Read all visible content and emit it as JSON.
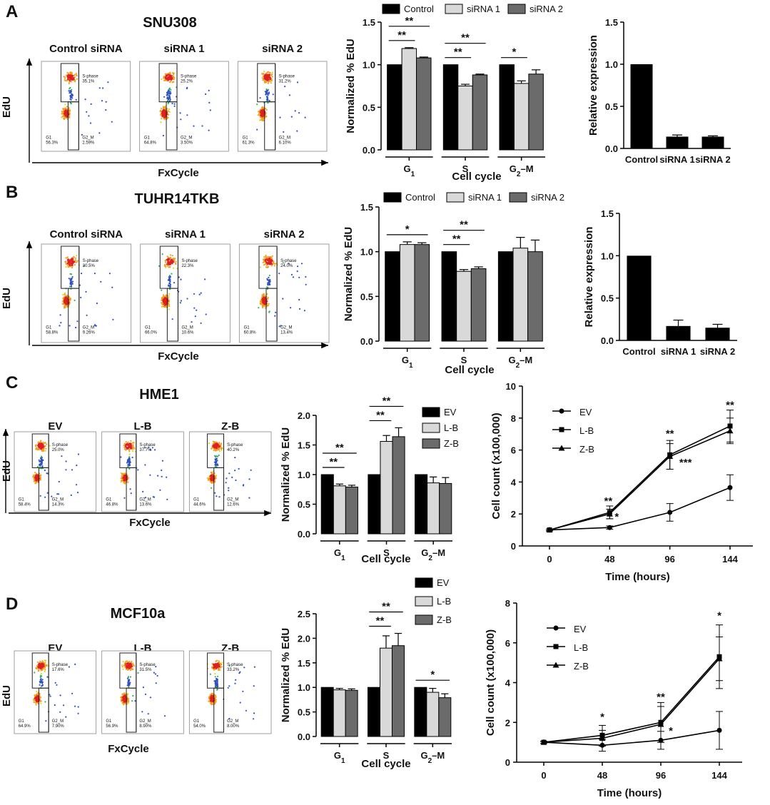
{
  "colors": {
    "control": "#000000",
    "treat1": "#d9d9d9",
    "treat2": "#6b6b6b",
    "axis": "#000000"
  },
  "panels": [
    {
      "letter": "A",
      "cell_line": "SNU308",
      "flow": {
        "plots": [
          "Control siRNA",
          "siRNA 1",
          "siRNA 2"
        ],
        "x_axis": "FxCycle",
        "y_axis": "EdU",
        "gates": [
          {
            "top": "S-phase\n35.1%",
            "g1": "G1\n56.3%",
            "g2m": "G2_M\n2.59%"
          },
          {
            "top": "S-phase\n25.2%",
            "g1": "G1\n64.8%",
            "g2m": "G2_M\n3.50%"
          },
          {
            "top": "S-phase\n31.2%",
            "g1": "G1\n61.3%",
            "g2m": "G2_M\n6.10%"
          }
        ]
      }
    },
    {
      "letter": "B",
      "cell_line": "TUHR14TKB",
      "flow": {
        "plots": [
          "Control siRNA",
          "siRNA 1",
          "siRNA 2"
        ],
        "x_axis": "FxCycle",
        "y_axis": "EdU",
        "gates": [
          {
            "top": "S-phase\n30.5%",
            "g1": "G1\n58.8%",
            "g2m": "G2_M\n9.26%"
          },
          {
            "top": "S-phase\n22.3%",
            "g1": "G1\n66.0%",
            "g2m": "G2_M\n10.6%"
          },
          {
            "top": "S-phase\n24.0%",
            "g1": "G1\n60.8%",
            "g2m": "G2_M\n13.4%"
          }
        ]
      }
    },
    {
      "letter": "C",
      "cell_line": "HME1",
      "flow": {
        "plots": [
          "EV",
          "L-B",
          "Z-B"
        ],
        "x_axis": "FxCycle",
        "y_axis": "EdU",
        "gates": [
          {
            "top": "S-phase\n25.0%",
            "g1": "G1\n58.4%",
            "g2m": "G2_M\n14.3%"
          },
          {
            "top": "S-phase\n37.7%",
            "g1": "G1\n46.8%",
            "g2m": "G2_M\n13.6%"
          },
          {
            "top": "S-phase\n40.2%",
            "g1": "G1\n44.6%",
            "g2m": "G2_M\n12.6%"
          }
        ]
      }
    },
    {
      "letter": "D",
      "cell_line": "MCF10a",
      "flow": {
        "plots": [
          "EV",
          "L-B",
          "Z-B"
        ],
        "x_axis": "FxCycle",
        "y_axis": "EdU",
        "gates": [
          {
            "top": "S-phase\n17.6%",
            "g1": "G1\n64.9%",
            "g2m": "G2_M\n7.90%"
          },
          {
            "top": "S-phase\n31.5%",
            "g1": "G1\n56.9%",
            "g2m": "G2_M\n8.90%"
          },
          {
            "top": "S-phase\n33.2%",
            "g1": "G1\n54.0%",
            "g2m": "G2_M\n8.00%"
          }
        ]
      }
    }
  ],
  "chart_data": [
    {
      "id": "A-edu",
      "type": "bar",
      "xlabel": "Cell cycle",
      "ylabel": "Normalized % EdU",
      "ylim": [
        0,
        1.5
      ],
      "yticks": [
        "0.0",
        "0.5",
        "1.0",
        "1.5"
      ],
      "categories": [
        "G1",
        "S",
        "G2–M"
      ],
      "series": [
        {
          "name": "Control",
          "values": [
            1.0,
            1.0,
            1.0
          ],
          "errors": [
            0,
            0,
            0
          ]
        },
        {
          "name": "siRNA 1",
          "values": [
            1.19,
            0.75,
            0.78
          ],
          "errors": [
            0.01,
            0.02,
            0.03
          ]
        },
        {
          "name": "siRNA 2",
          "values": [
            1.08,
            0.88,
            0.89
          ],
          "errors": [
            0.01,
            0.01,
            0.05
          ]
        }
      ],
      "legend": "top",
      "significance": [
        {
          "category": 0,
          "to_series": 1,
          "label": "**"
        },
        {
          "category": 0,
          "to_series": 2,
          "label": "**"
        },
        {
          "category": 1,
          "to_series": 1,
          "label": "**"
        },
        {
          "category": 1,
          "to_series": 2,
          "label": "**"
        },
        {
          "category": 2,
          "to_series": 1,
          "label": "*"
        }
      ]
    },
    {
      "id": "A-expr",
      "type": "bar",
      "ylabel": "Relative expression",
      "ylim": [
        0,
        1.5
      ],
      "yticks": [
        "0.0",
        "0.5",
        "1.0",
        "1.5"
      ],
      "categories": [
        "Control",
        "siRNA 1",
        "siRNA 2"
      ],
      "values": [
        1.0,
        0.14,
        0.14
      ],
      "errors": [
        0,
        0.02,
        0.01
      ]
    },
    {
      "id": "B-edu",
      "type": "bar",
      "xlabel": "Cell cycle",
      "ylabel": "Normalized % EdU",
      "ylim": [
        0,
        1.5
      ],
      "yticks": [
        "0.0",
        "0.5",
        "1.0",
        "1.5"
      ],
      "categories": [
        "G1",
        "S",
        "G2–M"
      ],
      "series": [
        {
          "name": "Control",
          "values": [
            1.0,
            1.0,
            1.0
          ],
          "errors": [
            0,
            0,
            0
          ]
        },
        {
          "name": "siRNA 1",
          "values": [
            1.08,
            0.78,
            1.04
          ],
          "errors": [
            0.03,
            0.02,
            0.12
          ]
        },
        {
          "name": "siRNA 2",
          "values": [
            1.08,
            0.81,
            1.0
          ],
          "errors": [
            0.02,
            0.02,
            0.13
          ]
        }
      ],
      "legend": "top",
      "significance": [
        {
          "category": 0,
          "to_series": 2,
          "label": "*"
        },
        {
          "category": 1,
          "to_series": 1,
          "label": "**"
        },
        {
          "category": 1,
          "to_series": 2,
          "label": "**"
        }
      ]
    },
    {
      "id": "B-expr",
      "type": "bar",
      "ylabel": "Relative expression",
      "ylim": [
        0,
        1.5
      ],
      "yticks": [
        "0.0",
        "0.5",
        "1.0",
        "1.5"
      ],
      "categories": [
        "Control",
        "siRNA 1",
        "siRNA 2"
      ],
      "values": [
        1.0,
        0.17,
        0.15
      ],
      "errors": [
        0,
        0.07,
        0.04
      ]
    },
    {
      "id": "C-edu",
      "type": "bar",
      "xlabel": "Cell cycle",
      "ylabel": "Normalized % EdU",
      "ylim": [
        0,
        2.0
      ],
      "yticks": [
        "0.0",
        "0.5",
        "1.0",
        "1.5",
        "2.0"
      ],
      "categories": [
        "G1",
        "S",
        "G2–M"
      ],
      "series": [
        {
          "name": "EV",
          "values": [
            1.0,
            1.0,
            1.0
          ],
          "errors": [
            0,
            0,
            0
          ]
        },
        {
          "name": "L-B",
          "values": [
            0.81,
            1.56,
            0.86
          ],
          "errors": [
            0.03,
            0.1,
            0.1
          ]
        },
        {
          "name": "Z-B",
          "values": [
            0.79,
            1.64,
            0.85
          ],
          "errors": [
            0.03,
            0.15,
            0.1
          ]
        }
      ],
      "legend": "right",
      "significance": [
        {
          "category": 0,
          "to_series": 1,
          "label": "**"
        },
        {
          "category": 0,
          "to_series": 2,
          "label": "**"
        },
        {
          "category": 1,
          "to_series": 1,
          "label": "**"
        },
        {
          "category": 1,
          "to_series": 2,
          "label": "**"
        }
      ]
    },
    {
      "id": "C-growth",
      "type": "line",
      "xlabel": "Time (hours)",
      "ylabel": "Cell count (x100,000)",
      "x": [
        0,
        48,
        96,
        144
      ],
      "xticks": [
        "0",
        "48",
        "96",
        "144"
      ],
      "ylim": [
        0,
        10
      ],
      "yticks": [
        "0",
        "2",
        "4",
        "6",
        "8",
        "10"
      ],
      "series": [
        {
          "name": "EV",
          "marker": "circle",
          "values": [
            1.0,
            1.15,
            2.1,
            3.65
          ],
          "errors": [
            0.05,
            0.1,
            0.55,
            0.8
          ]
        },
        {
          "name": "L-B",
          "marker": "square",
          "values": [
            1.0,
            2.1,
            5.7,
            7.5
          ],
          "errors": [
            0.05,
            0.4,
            0.9,
            1.0
          ]
        },
        {
          "name": "Z-B",
          "marker": "triangle",
          "values": [
            1.0,
            2.0,
            5.6,
            7.2
          ],
          "errors": [
            0.05,
            0.3,
            0.8,
            0.8
          ]
        }
      ],
      "legend": "top-left",
      "annotations": [
        {
          "x": 48,
          "label": "**"
        },
        {
          "x": 48,
          "label": "*"
        },
        {
          "x": 96,
          "label": "**"
        },
        {
          "x": 96,
          "label": "***"
        },
        {
          "x": 144,
          "label": "**"
        }
      ]
    },
    {
      "id": "D-edu",
      "type": "bar",
      "xlabel": "Cell cycle",
      "ylabel": "Normalized % EdU",
      "ylim": [
        0,
        2.5
      ],
      "yticks": [
        "0.0",
        "0.5",
        "1.0",
        "1.5",
        "2.0",
        "2.5"
      ],
      "categories": [
        "G1",
        "S",
        "G2–M"
      ],
      "series": [
        {
          "name": "EV",
          "values": [
            1.0,
            1.0,
            1.0
          ],
          "errors": [
            0,
            0,
            0
          ]
        },
        {
          "name": "L-B",
          "values": [
            0.95,
            1.8,
            0.9
          ],
          "errors": [
            0.03,
            0.25,
            0.08
          ]
        },
        {
          "name": "Z-B",
          "values": [
            0.94,
            1.85,
            0.79
          ],
          "errors": [
            0.03,
            0.25,
            0.08
          ]
        }
      ],
      "legend": "top-right",
      "significance": [
        {
          "category": 1,
          "to_series": 1,
          "label": "**"
        },
        {
          "category": 1,
          "to_series": 2,
          "label": "**"
        },
        {
          "category": 2,
          "to_series": 2,
          "label": "*"
        }
      ]
    },
    {
      "id": "D-growth",
      "type": "line",
      "xlabel": "Time (hours)",
      "ylabel": "Cell count (x100,000)",
      "x": [
        0,
        48,
        96,
        144
      ],
      "xticks": [
        "0",
        "48",
        "96",
        "144"
      ],
      "ylim": [
        0,
        8
      ],
      "yticks": [
        "0",
        "2",
        "4",
        "6",
        "8"
      ],
      "series": [
        {
          "name": "EV",
          "marker": "circle",
          "values": [
            1.0,
            0.85,
            1.1,
            1.6
          ],
          "errors": [
            0.05,
            0.3,
            0.45,
            0.95
          ]
        },
        {
          "name": "L-B",
          "marker": "square",
          "values": [
            1.0,
            1.35,
            2.0,
            5.3
          ],
          "errors": [
            0.05,
            0.5,
            1.0,
            1.6
          ]
        },
        {
          "name": "Z-B",
          "marker": "triangle",
          "values": [
            1.0,
            1.2,
            1.9,
            5.2
          ],
          "errors": [
            0.05,
            0.4,
            0.9,
            1.1
          ]
        }
      ],
      "legend": "top-left",
      "annotations": [
        {
          "x": 48,
          "label": "*"
        },
        {
          "x": 96,
          "label": "**"
        },
        {
          "x": 96,
          "label": "*"
        },
        {
          "x": 144,
          "label": "*"
        }
      ]
    }
  ]
}
